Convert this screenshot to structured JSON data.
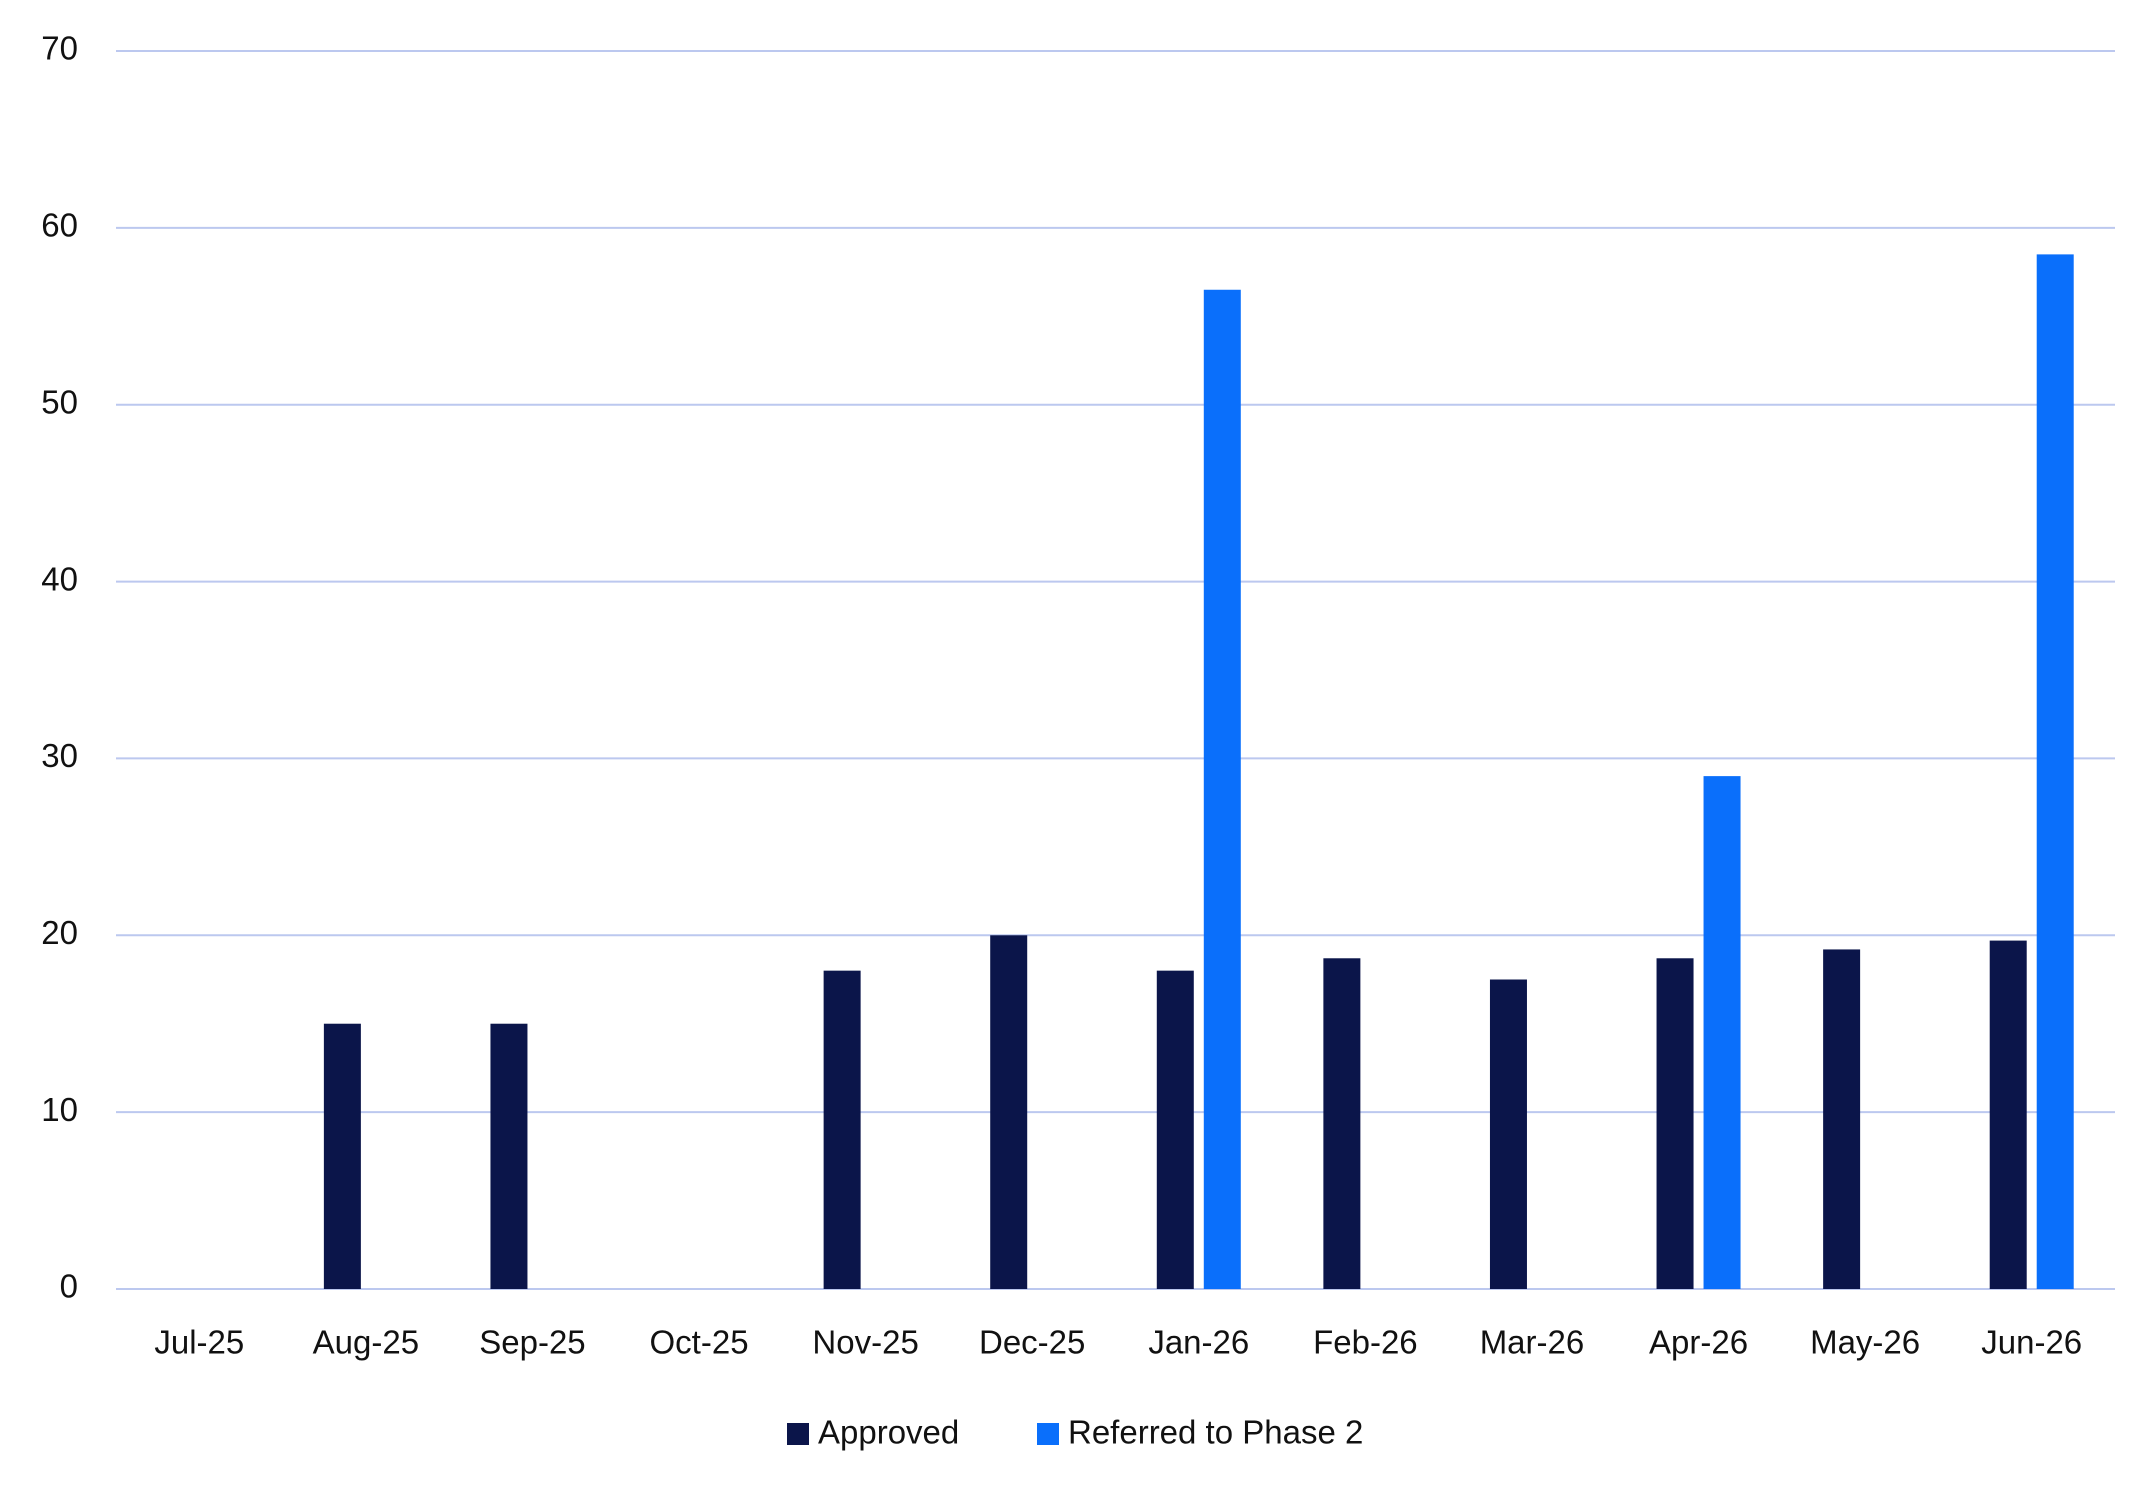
{
  "chart_data": {
    "type": "bar",
    "categories": [
      "Jul-25",
      "Aug-25",
      "Sep-25",
      "Oct-25",
      "Nov-25",
      "Dec-25",
      "Jan-26",
      "Feb-26",
      "Mar-26",
      "Apr-26",
      "May-26",
      "Jun-26"
    ],
    "series": [
      {
        "name": "Approved",
        "color": "#0b154a",
        "values": [
          null,
          15,
          15,
          null,
          18,
          20,
          18,
          18.7,
          17.5,
          18.7,
          19.2,
          19.7
        ]
      },
      {
        "name": "Referred to Phase 2",
        "color": "#0a6ffb",
        "values": [
          null,
          null,
          null,
          null,
          null,
          null,
          56.5,
          null,
          null,
          29,
          null,
          58.5
        ]
      }
    ],
    "ylim": [
      0,
      70
    ],
    "yticks": [
      0,
      10,
      20,
      30,
      40,
      50,
      60,
      70
    ],
    "grid": true,
    "legend": "bottom"
  }
}
